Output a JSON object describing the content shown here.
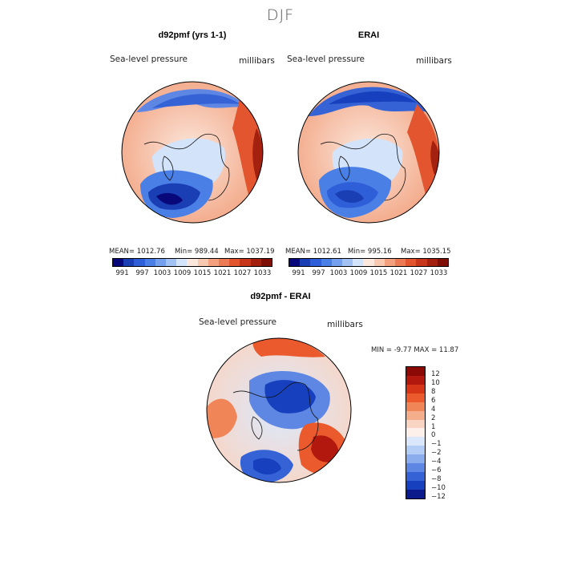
{
  "title": "DJF",
  "panels": {
    "left": {
      "title": "d92pmf (yrs 1-1)",
      "variable": "Sea-level pressure",
      "units": "millibars",
      "stats_mean": "MEAN=  1012.76",
      "stats_min": "Min=  989.44",
      "stats_max": "Max=  1037.19"
    },
    "right": {
      "title": "ERAI",
      "variable": "Sea-level pressure",
      "units": "millibars",
      "stats_mean": "MEAN=  1012.61",
      "stats_min": "Min=  995.16",
      "stats_max": "Max=  1035.15"
    },
    "diff": {
      "title": "d92pmf - ERAI",
      "variable": "Sea-level pressure",
      "units": "millibars",
      "stats": "MIN =   -9.77 MAX =  11.87"
    }
  },
  "slp_colorbar": {
    "colors": [
      "#08087a",
      "#1a3fb5",
      "#2f5fd8",
      "#4a7fe6",
      "#74a0ee",
      "#a3c2f4",
      "#d3e3fa",
      "#fbe7dc",
      "#f7c9b0",
      "#f2a07d",
      "#ec7b55",
      "#e2552e",
      "#c8361c",
      "#a5210f",
      "#7f0f06"
    ],
    "labels": [
      "991",
      "997",
      "1003",
      "1009",
      "1015",
      "1021",
      "1027",
      "1033"
    ]
  },
  "diff_colorbar": {
    "colors": [
      "#8b0a05",
      "#b2180d",
      "#d63518",
      "#ea5a2d",
      "#f08658",
      "#f5ae8c",
      "#fad4c2",
      "#fdf0ea",
      "#dbe8fb",
      "#b3cdf6",
      "#8badee",
      "#5e86e3",
      "#3563d6",
      "#1640bd",
      "#0a1a8a"
    ],
    "labels": [
      "12",
      "10",
      "8",
      "6",
      "4",
      "2",
      "1",
      "0",
      "−1",
      "−2",
      "−4",
      "−6",
      "−8",
      "−10",
      "−12"
    ]
  }
}
